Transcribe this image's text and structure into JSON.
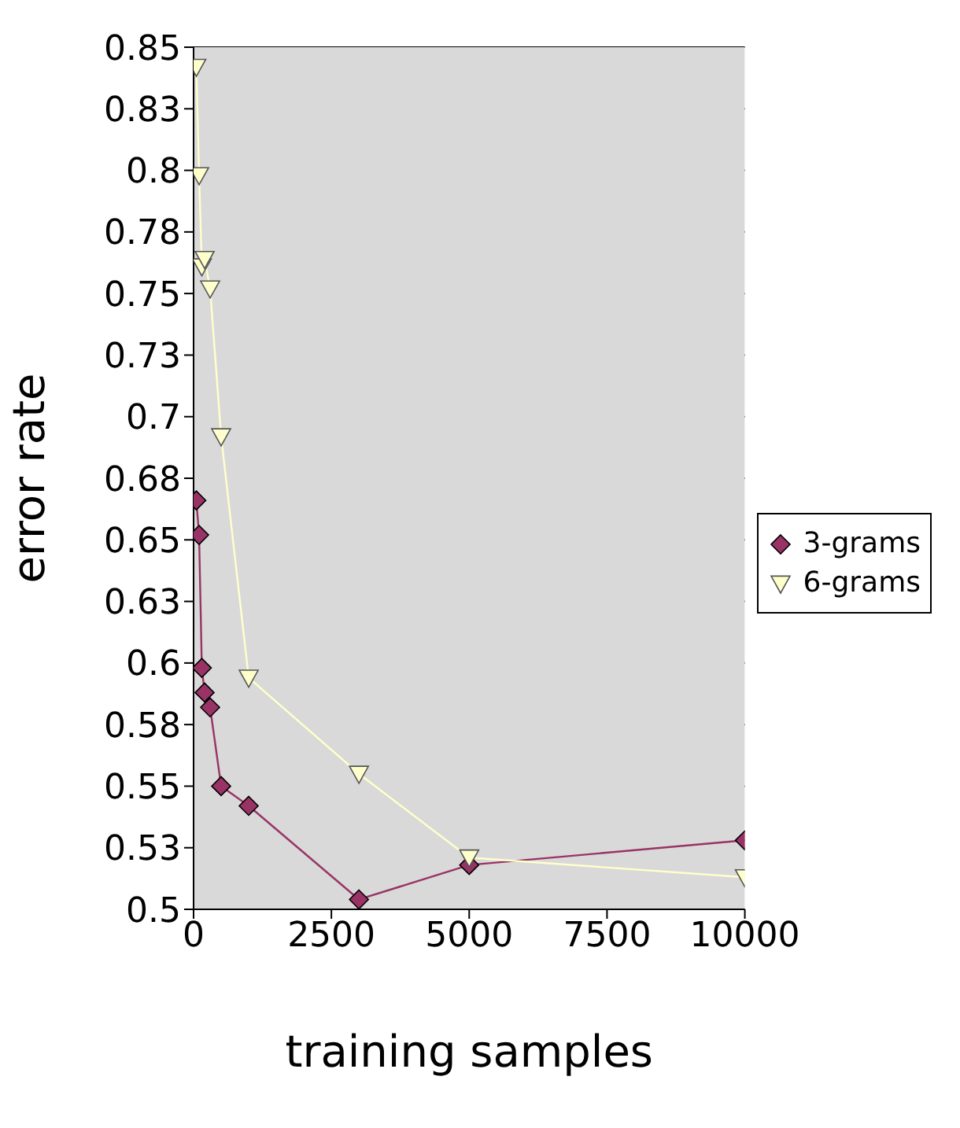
{
  "chart_data": {
    "type": "line",
    "xlabel": "training samples",
    "ylabel": "error rate",
    "xlim": [
      0,
      10000
    ],
    "xticks": [
      0,
      2500,
      5000,
      7500,
      10000
    ],
    "ylim": [
      0.5,
      0.85
    ],
    "yticks": [
      0.5,
      {
        "value": 0.525,
        "label": "0.53"
      },
      0.55,
      {
        "value": 0.575,
        "label": "0.58"
      },
      0.6,
      {
        "value": 0.625,
        "label": "0.63"
      },
      0.65,
      {
        "value": 0.675,
        "label": "0.68"
      },
      0.7,
      {
        "value": 0.725,
        "label": "0.73"
      },
      0.75,
      {
        "value": 0.775,
        "label": "0.78"
      },
      0.8,
      {
        "value": 0.825,
        "label": "0.83"
      },
      0.85
    ],
    "grid": "y",
    "legend": "right",
    "series": [
      {
        "name": "3-grams",
        "color": "#993366",
        "marker": "diamond",
        "x": [
          50,
          100,
          150,
          200,
          300,
          500,
          1000,
          3000,
          5000,
          10000
        ],
        "values": [
          0.666,
          0.652,
          0.598,
          0.588,
          0.582,
          0.55,
          0.542,
          0.504,
          0.518,
          0.528
        ]
      },
      {
        "name": "6-grams",
        "color": "#ffffcc",
        "marker": "triangle",
        "x": [
          50,
          100,
          150,
          200,
          300,
          500,
          1000,
          3000,
          5000,
          10000
        ],
        "values": [
          0.842,
          0.798,
          0.761,
          0.764,
          0.752,
          0.692,
          0.594,
          0.555,
          0.521,
          0.513
        ]
      }
    ]
  }
}
